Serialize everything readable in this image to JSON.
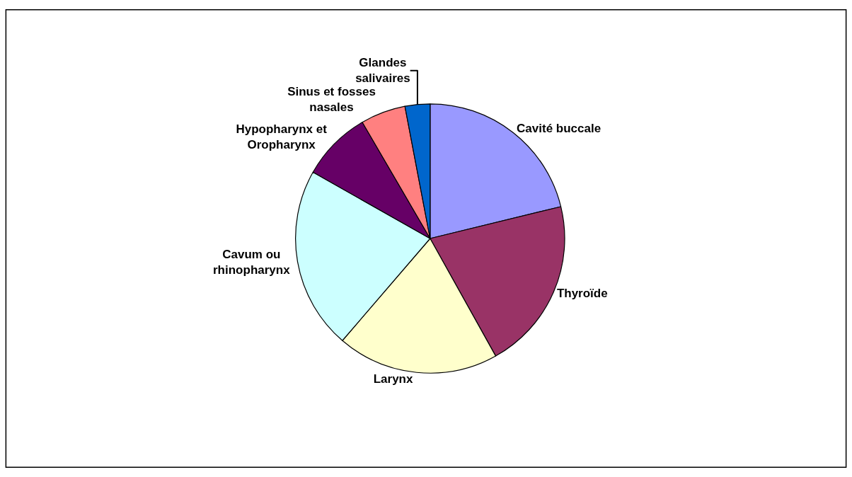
{
  "chart_data": {
    "type": "pie",
    "categories": [
      "Cavité buccale",
      "Thyroïde",
      "Larynx",
      "Cavum ou rhinopharynx",
      "Hypopharynx et Oropharynx",
      "Sinus et fosses nasales",
      "Glandes salivaires"
    ],
    "values": [
      21.2,
      20.7,
      19.4,
      21.9,
      8.4,
      5.4,
      3.0
    ],
    "colors": [
      "#9999ff",
      "#993366",
      "#ffffcc",
      "#ccffff",
      "#660066",
      "#ff8080",
      "#0066cc"
    ],
    "legend": false
  }
}
